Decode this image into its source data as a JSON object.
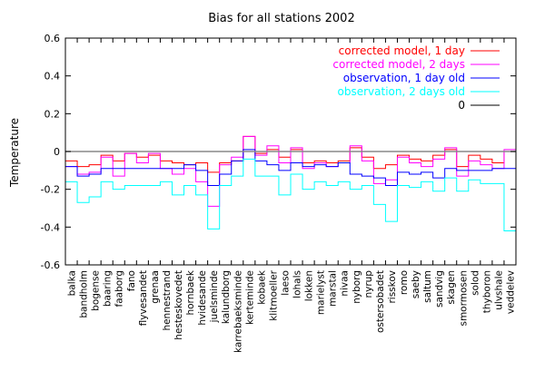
{
  "chart_data": {
    "type": "line",
    "title": "Bias for all stations 2002",
    "xlabel": "",
    "ylabel": "Temperature",
    "ylim": [
      -0.6,
      0.6
    ],
    "yticks": [
      0.6,
      0.4,
      0.2,
      0,
      -0.2,
      -0.4,
      -0.6
    ],
    "grid": false,
    "legend_position": "top-right",
    "categories": [
      "balka",
      "bandholm",
      "bogense",
      "baaring",
      "faaborg",
      "fano",
      "flyvesandet",
      "grenaa",
      "hennestrand",
      "hesteskovedet",
      "hornbaek",
      "hvidesande",
      "juelsminde",
      "kalundborg",
      "karrebaeksminde",
      "kerteminde",
      "kobaek",
      "klitmoeller",
      "laeso",
      "lohals",
      "lokken",
      "marielyst",
      "marstal",
      "nivaa",
      "nyborg",
      "nyrup",
      "ostersobadet",
      "risskov",
      "romo",
      "saeby",
      "saltum",
      "sandvig",
      "skagen",
      "smormosen",
      "solod",
      "thyboron",
      "ulvshale",
      "veddelev"
    ],
    "series": [
      {
        "name": "corrected model, 1 day",
        "color": "#ff0000",
        "values": [
          -0.05,
          -0.08,
          -0.07,
          -0.02,
          -0.05,
          -0.01,
          -0.03,
          -0.02,
          -0.05,
          -0.06,
          -0.07,
          -0.06,
          -0.11,
          -0.06,
          -0.05,
          0.08,
          -0.01,
          0.01,
          -0.03,
          0.01,
          -0.06,
          -0.05,
          -0.06,
          -0.05,
          0.02,
          -0.03,
          -0.09,
          -0.07,
          -0.02,
          -0.04,
          -0.05,
          -0.02,
          0.01,
          -0.08,
          -0.02,
          -0.04,
          -0.06,
          0.0
        ]
      },
      {
        "name": "corrected model, 2 days",
        "color": "#ff00ff",
        "values": [
          -0.08,
          -0.12,
          -0.11,
          -0.03,
          -0.13,
          -0.01,
          -0.06,
          -0.01,
          -0.09,
          -0.12,
          -0.09,
          -0.16,
          -0.29,
          -0.07,
          -0.03,
          0.08,
          -0.02,
          0.03,
          -0.06,
          0.02,
          -0.09,
          -0.06,
          -0.08,
          -0.06,
          0.03,
          -0.05,
          -0.17,
          -0.15,
          -0.03,
          -0.06,
          -0.08,
          -0.04,
          0.02,
          -0.13,
          -0.05,
          -0.07,
          -0.09,
          0.01
        ]
      },
      {
        "name": "observation, 1 day old",
        "color": "#0000ff",
        "values": [
          -0.08,
          -0.13,
          -0.12,
          -0.09,
          -0.09,
          -0.09,
          -0.09,
          -0.09,
          -0.09,
          -0.09,
          -0.07,
          -0.1,
          -0.18,
          -0.12,
          -0.05,
          0.01,
          -0.05,
          -0.07,
          -0.1,
          -0.06,
          -0.08,
          -0.07,
          -0.08,
          -0.06,
          -0.12,
          -0.13,
          -0.14,
          -0.18,
          -0.11,
          -0.12,
          -0.11,
          -0.14,
          -0.09,
          -0.1,
          -0.1,
          -0.1,
          -0.09,
          -0.09
        ]
      },
      {
        "name": "observation, 2 days old",
        "color": "#00ffff",
        "values": [
          -0.16,
          -0.27,
          -0.24,
          -0.16,
          -0.2,
          -0.18,
          -0.18,
          -0.18,
          -0.16,
          -0.23,
          -0.18,
          -0.23,
          -0.41,
          -0.18,
          -0.13,
          -0.04,
          -0.13,
          -0.13,
          -0.23,
          -0.12,
          -0.2,
          -0.16,
          -0.18,
          -0.16,
          -0.2,
          -0.18,
          -0.28,
          -0.37,
          -0.18,
          -0.19,
          -0.16,
          -0.21,
          -0.14,
          -0.21,
          -0.15,
          -0.17,
          -0.17,
          -0.42
        ]
      },
      {
        "name": "0",
        "color": "#000000",
        "values": [
          0,
          0,
          0,
          0,
          0,
          0,
          0,
          0,
          0,
          0,
          0,
          0,
          0,
          0,
          0,
          0,
          0,
          0,
          0,
          0,
          0,
          0,
          0,
          0,
          0,
          0,
          0,
          0,
          0,
          0,
          0,
          0,
          0,
          0,
          0,
          0,
          0,
          0
        ]
      }
    ]
  }
}
